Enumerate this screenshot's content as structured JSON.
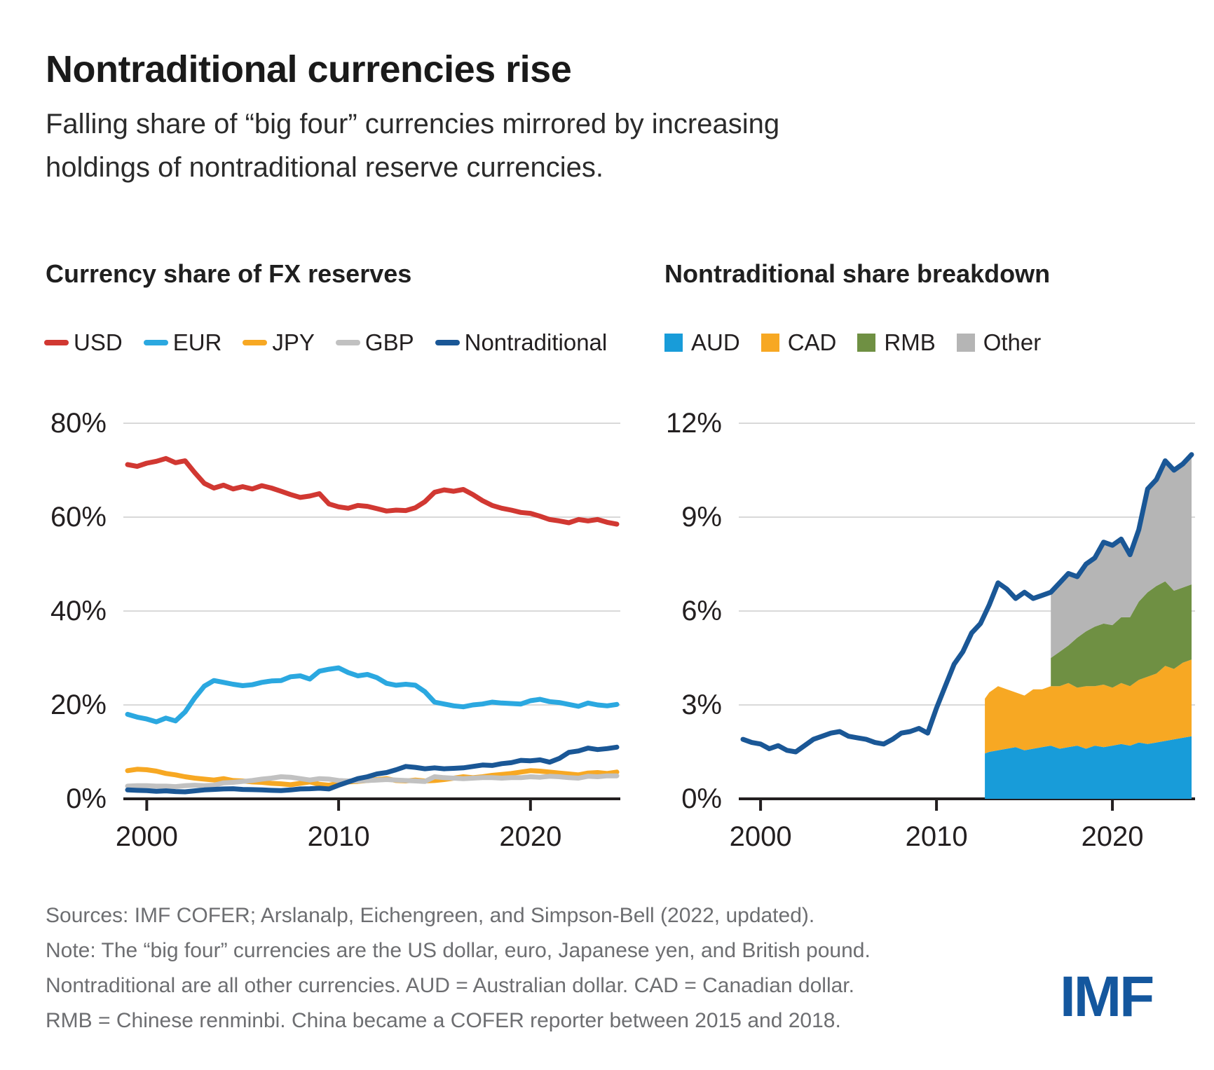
{
  "title": "Nontraditional currencies rise",
  "subtitle": "Falling share of “big four” currencies mirrored by increasing\nholdings of nontraditional reserve currencies.",
  "logo": {
    "text": "IMF",
    "color": "#14579e"
  },
  "style_colors": {
    "grid": "#d9d9d9",
    "axis": "#231f20",
    "tick_label": "#231f20"
  },
  "footer": {
    "lines": [
      "Sources: IMF COFER; Arslanalp, Eichengreen, and Simpson-Bell (2022, updated).",
      "Note: The “big four” currencies are the US dollar, euro, Japanese yen, and British pound.",
      "Nontraditional are all other currencies. AUD = Australian dollar. CAD = Canadian dollar.",
      "RMB = Chinese renminbi. China became a COFER reporter between 2015 and 2018."
    ]
  },
  "chart_data": [
    {
      "type": "line",
      "title": "Currency share of FX reserves",
      "x_start": 1999,
      "x_step": 0.5,
      "xlim": [
        1999,
        2024.5
      ],
      "ylim": [
        0,
        80
      ],
      "grid": true,
      "legend_position": "top",
      "legend_style": "dash",
      "yticks": [
        {
          "value": 0,
          "label": "0%"
        },
        {
          "value": 20,
          "label": "20%"
        },
        {
          "value": 40,
          "label": "40%"
        },
        {
          "value": 60,
          "label": "60%"
        },
        {
          "value": 80,
          "label": "80%"
        }
      ],
      "xticks": [
        {
          "value": 2000,
          "label": "2000"
        },
        {
          "value": 2010,
          "label": "2010"
        },
        {
          "value": 2020,
          "label": "2020"
        }
      ],
      "series": [
        {
          "name": "USD",
          "color": "#d13832",
          "values": [
            71.2,
            70.8,
            71.5,
            71.9,
            72.5,
            71.6,
            72.0,
            69.5,
            67.2,
            66.2,
            66.8,
            66.0,
            66.5,
            66.0,
            66.7,
            66.2,
            65.5,
            64.8,
            64.2,
            64.5,
            65.0,
            62.8,
            62.2,
            61.9,
            62.5,
            62.3,
            61.8,
            61.3,
            61.5,
            61.4,
            62.0,
            63.3,
            65.3,
            65.8,
            65.5,
            65.9,
            64.8,
            63.5,
            62.5,
            61.9,
            61.5,
            61.0,
            60.8,
            60.2,
            59.5,
            59.2,
            58.8,
            59.5,
            59.2,
            59.5,
            58.9,
            58.5
          ]
        },
        {
          "name": "EUR",
          "color": "#2ba8e0",
          "values": [
            18.0,
            17.4,
            17.0,
            16.4,
            17.2,
            16.6,
            18.5,
            21.5,
            24.0,
            25.2,
            24.8,
            24.4,
            24.1,
            24.3,
            24.8,
            25.1,
            25.2,
            26.0,
            26.2,
            25.5,
            27.2,
            27.6,
            27.9,
            26.9,
            26.2,
            26.5,
            25.8,
            24.6,
            24.2,
            24.4,
            24.2,
            22.8,
            20.6,
            20.2,
            19.8,
            19.6,
            20.0,
            20.2,
            20.6,
            20.4,
            20.3,
            20.2,
            20.9,
            21.2,
            20.7,
            20.5,
            20.1,
            19.7,
            20.4,
            20.0,
            19.8,
            20.1
          ]
        },
        {
          "name": "JPY",
          "color": "#f7a823",
          "values": [
            6.0,
            6.3,
            6.2,
            5.9,
            5.4,
            5.1,
            4.7,
            4.4,
            4.2,
            4.0,
            4.3,
            3.9,
            3.8,
            3.6,
            3.5,
            3.3,
            3.2,
            3.0,
            3.3,
            3.6,
            3.1,
            2.9,
            3.3,
            3.6,
            3.7,
            3.9,
            4.1,
            4.3,
            3.9,
            3.8,
            4.0,
            3.8,
            3.9,
            4.1,
            4.4,
            4.7,
            4.5,
            4.7,
            5.0,
            5.2,
            5.4,
            5.7,
            6.0,
            5.9,
            5.7,
            5.5,
            5.3,
            5.1,
            5.5,
            5.6,
            5.4,
            5.7
          ]
        },
        {
          "name": "GBP",
          "color": "#c1c1c1",
          "values": [
            2.7,
            2.8,
            2.8,
            2.7,
            2.7,
            2.6,
            2.8,
            2.9,
            2.8,
            2.9,
            3.4,
            3.5,
            3.7,
            3.9,
            4.2,
            4.4,
            4.7,
            4.6,
            4.3,
            4.0,
            4.3,
            4.2,
            3.9,
            3.8,
            3.8,
            3.9,
            4.0,
            4.1,
            4.0,
            3.9,
            3.8,
            3.7,
            4.7,
            4.5,
            4.4,
            4.3,
            4.4,
            4.5,
            4.5,
            4.4,
            4.5,
            4.5,
            4.7,
            4.6,
            4.8,
            4.7,
            4.5,
            4.4,
            4.8,
            4.7,
            4.9,
            4.9
          ]
        },
        {
          "name": "Nontraditional",
          "color": "#1a5796",
          "values": [
            1.9,
            1.8,
            1.75,
            1.6,
            1.7,
            1.55,
            1.5,
            1.7,
            1.9,
            2.0,
            2.1,
            2.15,
            2.0,
            1.95,
            1.9,
            1.8,
            1.75,
            1.9,
            2.1,
            2.15,
            2.25,
            2.1,
            2.9,
            3.6,
            4.3,
            4.7,
            5.3,
            5.6,
            6.2,
            6.9,
            6.7,
            6.4,
            6.6,
            6.4,
            6.5,
            6.6,
            6.9,
            7.2,
            7.1,
            7.5,
            7.7,
            8.2,
            8.1,
            8.3,
            7.8,
            8.6,
            9.9,
            10.2,
            10.8,
            10.5,
            10.7,
            11.0
          ]
        }
      ]
    },
    {
      "type": "stacked-area-with-line",
      "title": "Nontraditional share breakdown",
      "xlim": [
        1999,
        2024.5
      ],
      "ylim": [
        0,
        12
      ],
      "grid": true,
      "legend_position": "top",
      "legend_style": "square",
      "yticks": [
        {
          "value": 0,
          "label": "0%"
        },
        {
          "value": 3,
          "label": "3%"
        },
        {
          "value": 6,
          "label": "6%"
        },
        {
          "value": 9,
          "label": "9%"
        },
        {
          "value": 12,
          "label": "12%"
        }
      ],
      "xticks": [
        {
          "value": 2000,
          "label": "2000"
        },
        {
          "value": 2010,
          "label": "2010"
        },
        {
          "value": 2020,
          "label": "2020"
        }
      ],
      "stack_x": [
        2012.75,
        2013,
        2013.5,
        2014,
        2014.5,
        2015,
        2015.5,
        2016,
        2016.5,
        2017,
        2017.5,
        2018,
        2018.5,
        2019,
        2019.5,
        2020,
        2020.5,
        2021,
        2021.5,
        2022,
        2022.5,
        2023,
        2023.5,
        2024,
        2024.5
      ],
      "areas": [
        {
          "name": "AUD",
          "color": "#189cd9",
          "start_index": 0,
          "values": [
            1.45,
            1.5,
            1.55,
            1.6,
            1.65,
            1.55,
            1.6,
            1.65,
            1.7,
            1.6,
            1.65,
            1.7,
            1.6,
            1.7,
            1.65,
            1.7,
            1.75,
            1.7,
            1.8,
            1.75,
            1.8,
            1.85,
            1.9,
            1.95,
            2.0
          ]
        },
        {
          "name": "CAD",
          "color": "#f7a823",
          "start_index": 0,
          "values": [
            1.75,
            1.9,
            2.05,
            1.9,
            1.75,
            1.75,
            1.9,
            1.85,
            1.9,
            2.0,
            2.05,
            1.85,
            2.0,
            1.9,
            2.0,
            1.85,
            1.95,
            1.9,
            2.0,
            2.15,
            2.2,
            2.4,
            2.25,
            2.4,
            2.45
          ]
        },
        {
          "name": "RMB",
          "color": "#6f9043",
          "start_index": 8,
          "values": [
            0.9,
            1.1,
            1.2,
            1.6,
            1.75,
            1.9,
            1.95,
            2.0,
            2.1,
            2.2,
            2.5,
            2.7,
            2.8,
            2.7,
            2.5,
            2.4,
            2.4
          ]
        },
        {
          "name": "Other",
          "color": "#b5b5b5",
          "start_index": 8,
          "values": [
            2.1,
            2.2,
            2.3,
            1.95,
            2.15,
            2.2,
            2.6,
            2.55,
            2.5,
            2.0,
            2.3,
            3.3,
            3.4,
            3.85,
            3.85,
            3.95,
            4.15
          ]
        }
      ],
      "line": {
        "name": "Nontraditional total",
        "color": "#1a5796",
        "x_start": 1999,
        "x_step": 0.5,
        "values": [
          1.9,
          1.8,
          1.75,
          1.6,
          1.7,
          1.55,
          1.5,
          1.7,
          1.9,
          2.0,
          2.1,
          2.15,
          2.0,
          1.95,
          1.9,
          1.8,
          1.75,
          1.9,
          2.1,
          2.15,
          2.25,
          2.1,
          2.9,
          3.6,
          4.3,
          4.7,
          5.3,
          5.6,
          6.2,
          6.9,
          6.7,
          6.4,
          6.6,
          6.4,
          6.5,
          6.6,
          6.9,
          7.2,
          7.1,
          7.5,
          7.7,
          8.2,
          8.1,
          8.3,
          7.8,
          8.6,
          9.9,
          10.2,
          10.8,
          10.5,
          10.7,
          11.0
        ]
      }
    }
  ]
}
